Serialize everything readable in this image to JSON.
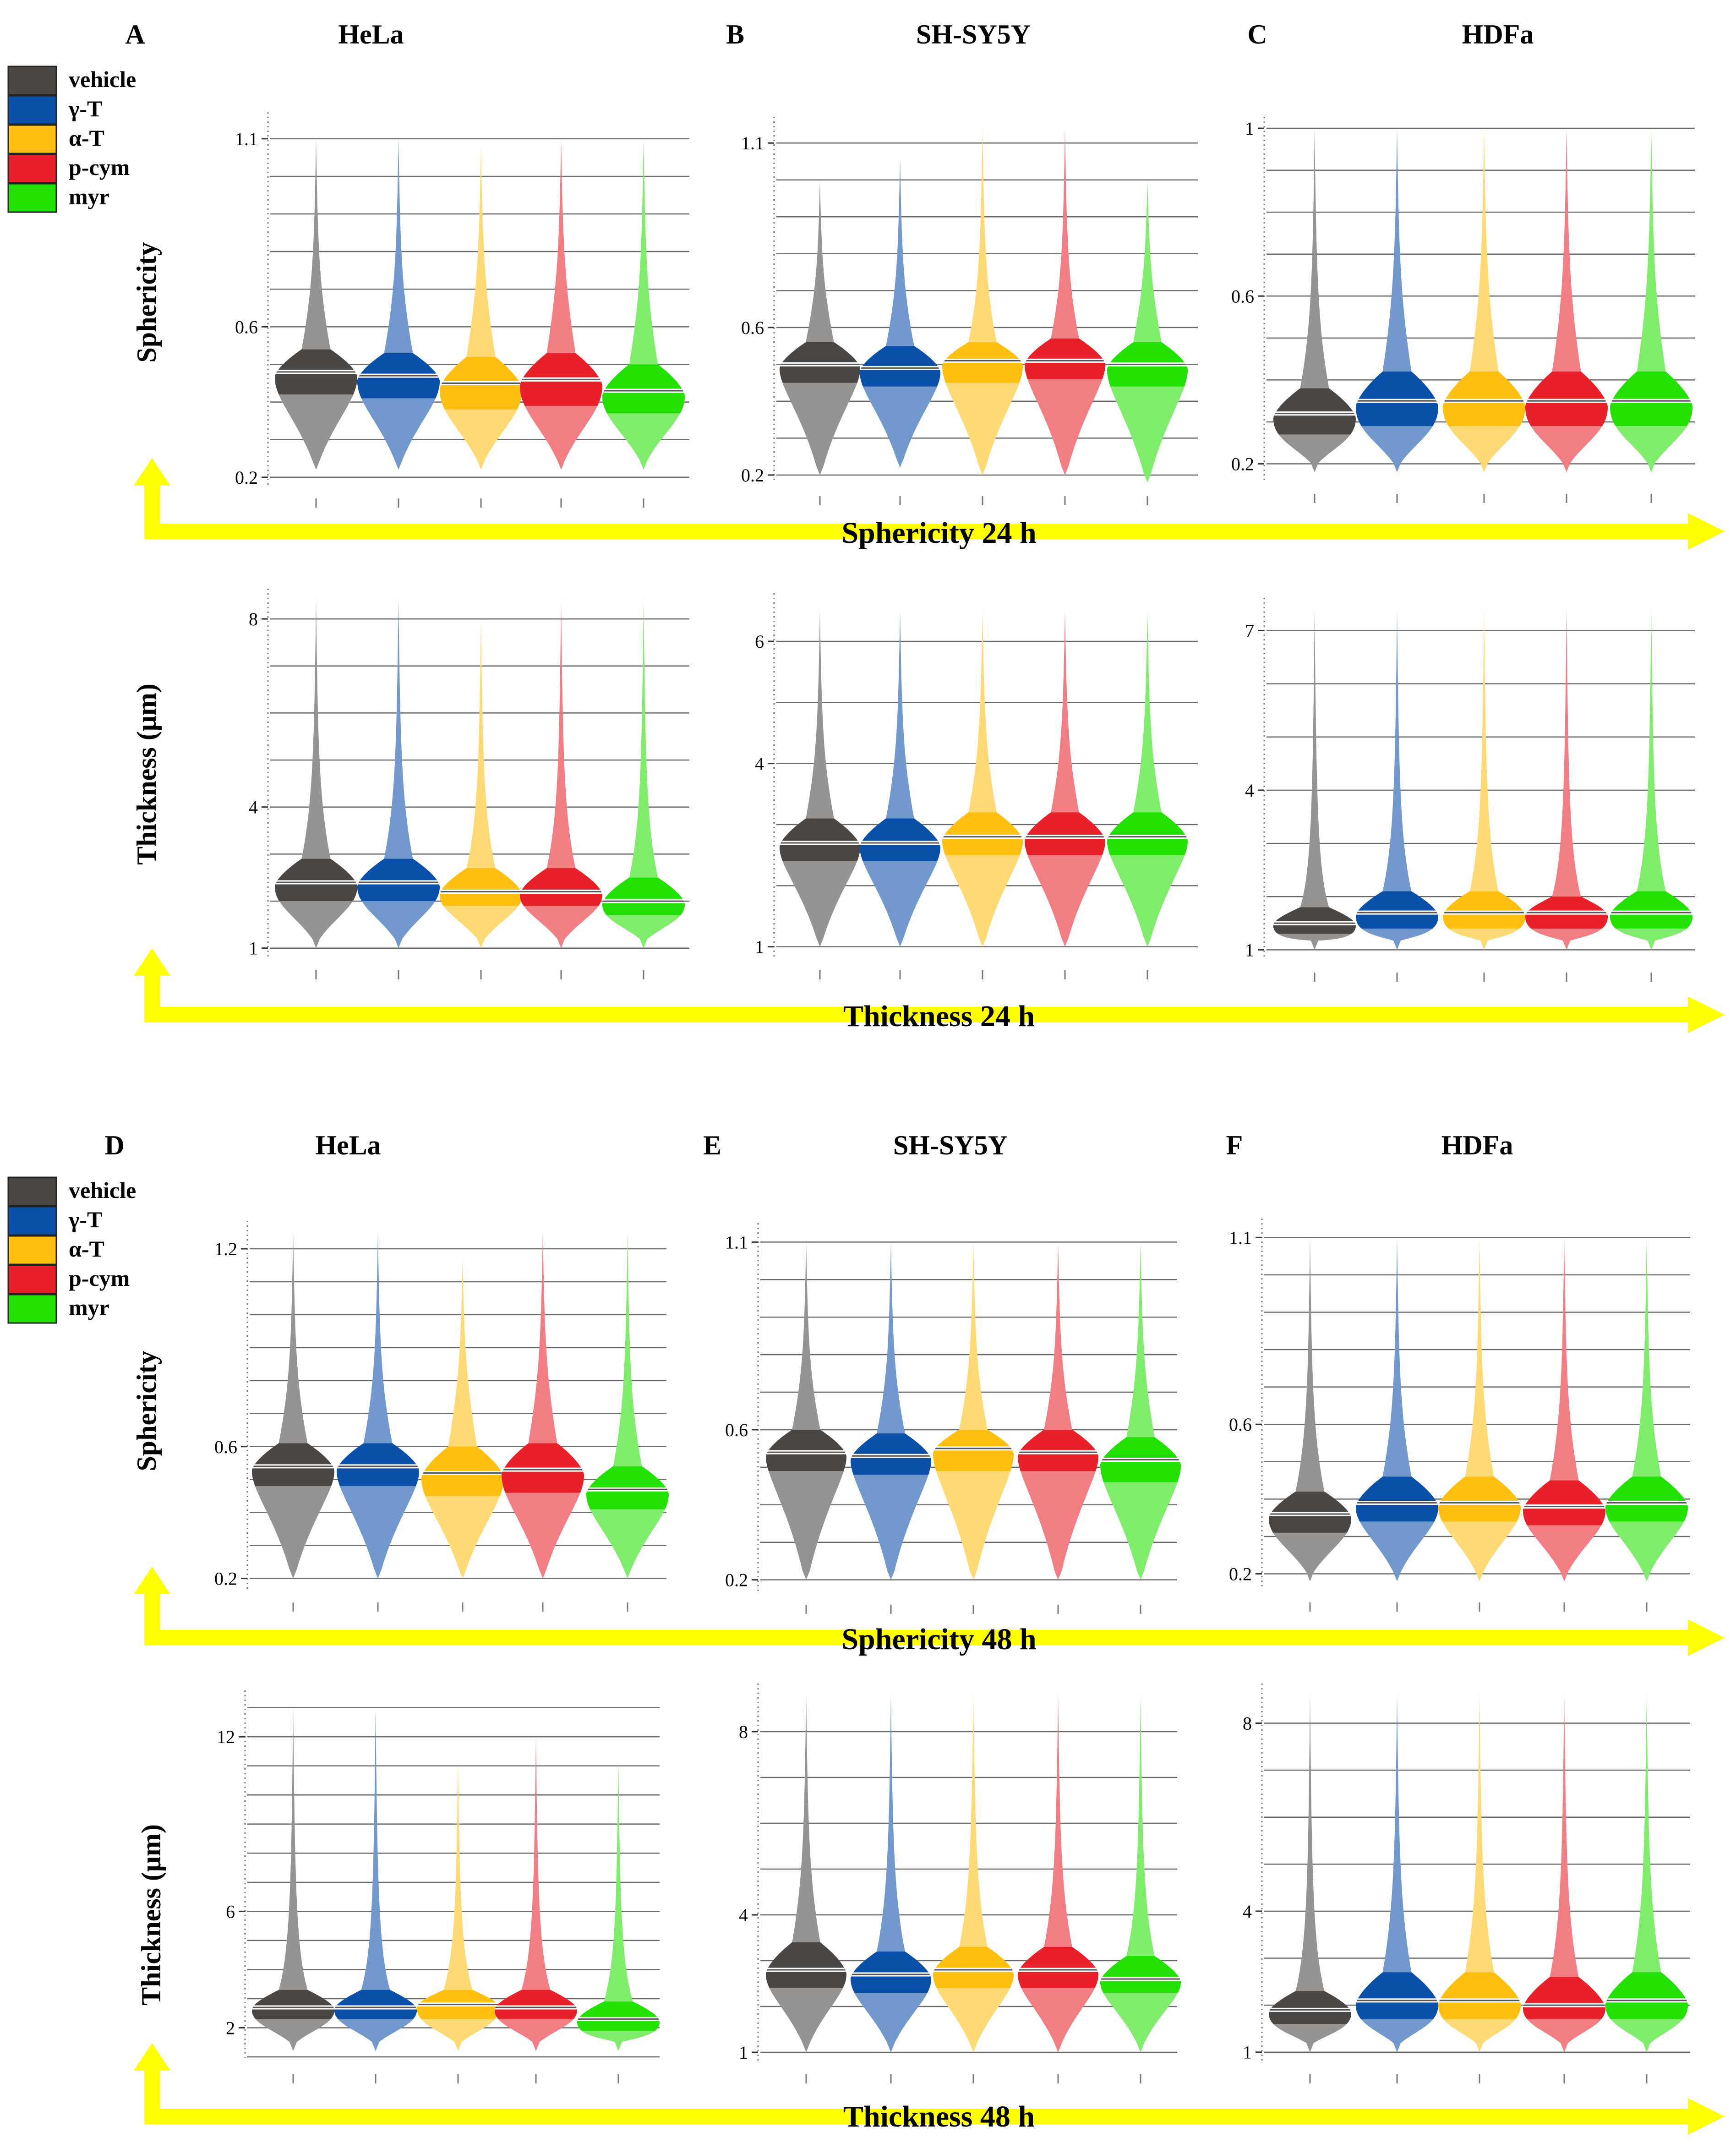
{
  "figure": {
    "legend": [
      {
        "label": "vehicle",
        "color": "#4a4644"
      },
      {
        "label": "γ-T",
        "color": "#0a4fa8"
      },
      {
        "label": "α-T",
        "color": "#ffbf10"
      },
      {
        "label": "p-cym",
        "color": "#e8202a"
      },
      {
        "label": "myr",
        "color": "#22e000"
      }
    ],
    "arrow_labels": [
      "Sphericity 24 h",
      "Thickness 24 h",
      "Sphericity 48 h",
      "Thickness 48 h"
    ],
    "ylabels": [
      "Sphericity",
      "Thickness (μm)",
      "Sphericity",
      "Thickness (μm)"
    ],
    "panel_letters": [
      "A",
      "B",
      "C",
      "D",
      "E",
      "F"
    ],
    "cell_lines": [
      "HeLa",
      "SH-SY5Y",
      "HDFa",
      "HeLa",
      "SH-SY5Y",
      "HDFa"
    ]
  },
  "chart_data": [
    {
      "type": "violin",
      "panel": "A",
      "title": "HeLa",
      "metric": "Sphericity",
      "time": "24 h",
      "ylim": [
        0.19,
        1.14
      ],
      "yticks": [
        0.2,
        0.6,
        1.1
      ],
      "categories": [
        "vehicle",
        "γ-T",
        "α-T",
        "p-cym",
        "myr"
      ],
      "series": [
        {
          "name": "vehicle",
          "min": 0.22,
          "max": 1.1,
          "q1": 0.42,
          "median": 0.48,
          "q3": 0.54
        },
        {
          "name": "γ-T",
          "min": 0.22,
          "max": 1.1,
          "q1": 0.41,
          "median": 0.47,
          "q3": 0.53
        },
        {
          "name": "α-T",
          "min": 0.22,
          "max": 1.08,
          "q1": 0.38,
          "median": 0.45,
          "q3": 0.52
        },
        {
          "name": "p-cym",
          "min": 0.22,
          "max": 1.1,
          "q1": 0.39,
          "median": 0.46,
          "q3": 0.53
        },
        {
          "name": "myr",
          "min": 0.22,
          "max": 1.1,
          "q1": 0.37,
          "median": 0.43,
          "q3": 0.5
        }
      ]
    },
    {
      "type": "violin",
      "panel": "B",
      "title": "SH-SY5Y",
      "metric": "Sphericity",
      "time": "24 h",
      "ylim": [
        0.19,
        1.14
      ],
      "yticks": [
        0.2,
        0.6,
        1.1
      ],
      "categories": [
        "vehicle",
        "γ-T",
        "α-T",
        "p-cym",
        "myr"
      ],
      "series": [
        {
          "name": "vehicle",
          "min": 0.2,
          "max": 1.0,
          "q1": 0.45,
          "median": 0.5,
          "q3": 0.56
        },
        {
          "name": "γ-T",
          "min": 0.22,
          "max": 1.06,
          "q1": 0.44,
          "median": 0.49,
          "q3": 0.55
        },
        {
          "name": "α-T",
          "min": 0.2,
          "max": 1.14,
          "q1": 0.45,
          "median": 0.51,
          "q3": 0.56
        },
        {
          "name": "p-cym",
          "min": 0.2,
          "max": 1.14,
          "q1": 0.46,
          "median": 0.51,
          "q3": 0.57
        },
        {
          "name": "myr",
          "min": 0.18,
          "max": 1.0,
          "q1": 0.44,
          "median": 0.5,
          "q3": 0.56
        }
      ]
    },
    {
      "type": "violin",
      "panel": "C",
      "title": "HDFa",
      "metric": "Sphericity",
      "time": "24 h",
      "ylim": [
        0.17,
        1.0
      ],
      "yticks": [
        0.2,
        0.6,
        1
      ],
      "categories": [
        "vehicle",
        "γ-T",
        "α-T",
        "p-cym",
        "myr"
      ],
      "series": [
        {
          "name": "vehicle",
          "min": 0.18,
          "max": 1.0,
          "q1": 0.27,
          "median": 0.32,
          "q3": 0.38
        },
        {
          "name": "γ-T",
          "min": 0.18,
          "max": 1.0,
          "q1": 0.29,
          "median": 0.35,
          "q3": 0.42
        },
        {
          "name": "α-T",
          "min": 0.18,
          "max": 1.0,
          "q1": 0.29,
          "median": 0.35,
          "q3": 0.42
        },
        {
          "name": "p-cym",
          "min": 0.18,
          "max": 1.0,
          "q1": 0.29,
          "median": 0.35,
          "q3": 0.42
        },
        {
          "name": "myr",
          "min": 0.18,
          "max": 1.0,
          "q1": 0.29,
          "median": 0.35,
          "q3": 0.42
        }
      ]
    },
    {
      "type": "violin",
      "panel": "A",
      "title": "HeLa",
      "metric": "Thickness (μm)",
      "time": "24 h",
      "ylim": [
        0.9,
        8.4
      ],
      "yticks": [
        1,
        4,
        8
      ],
      "categories": [
        "vehicle",
        "γ-T",
        "α-T",
        "p-cym",
        "myr"
      ],
      "series": [
        {
          "name": "vehicle",
          "min": 1.0,
          "max": 8.4,
          "q1": 2.0,
          "median": 2.4,
          "q3": 2.9
        },
        {
          "name": "γ-T",
          "min": 1.0,
          "max": 8.4,
          "q1": 2.0,
          "median": 2.4,
          "q3": 2.9
        },
        {
          "name": "α-T",
          "min": 1.0,
          "max": 8.0,
          "q1": 1.9,
          "median": 2.2,
          "q3": 2.7
        },
        {
          "name": "p-cym",
          "min": 1.0,
          "max": 8.4,
          "q1": 1.9,
          "median": 2.2,
          "q3": 2.7
        },
        {
          "name": "myr",
          "min": 1.0,
          "max": 8.4,
          "q1": 1.7,
          "median": 2.0,
          "q3": 2.5
        }
      ]
    },
    {
      "type": "violin",
      "panel": "B",
      "title": "SH-SY5Y",
      "metric": "Thickness (μm)",
      "time": "24 h",
      "ylim": [
        0.9,
        6.6
      ],
      "yticks": [
        1,
        4,
        6
      ],
      "categories": [
        "vehicle",
        "γ-T",
        "α-T",
        "p-cym",
        "myr"
      ],
      "series": [
        {
          "name": "vehicle",
          "min": 1.0,
          "max": 6.5,
          "q1": 2.4,
          "median": 2.7,
          "q3": 3.1
        },
        {
          "name": "γ-T",
          "min": 1.0,
          "max": 6.5,
          "q1": 2.4,
          "median": 2.7,
          "q3": 3.1
        },
        {
          "name": "α-T",
          "min": 1.0,
          "max": 6.5,
          "q1": 2.5,
          "median": 2.8,
          "q3": 3.2
        },
        {
          "name": "p-cym",
          "min": 1.0,
          "max": 6.5,
          "q1": 2.5,
          "median": 2.8,
          "q3": 3.2
        },
        {
          "name": "myr",
          "min": 1.0,
          "max": 6.5,
          "q1": 2.5,
          "median": 2.8,
          "q3": 3.2
        }
      ]
    },
    {
      "type": "violin",
      "panel": "C",
      "title": "HDFa",
      "metric": "Thickness (μm)",
      "time": "24 h",
      "ylim": [
        0.9,
        7.4
      ],
      "yticks": [
        1,
        4,
        7
      ],
      "categories": [
        "vehicle",
        "γ-T",
        "α-T",
        "p-cym",
        "myr"
      ],
      "series": [
        {
          "name": "vehicle",
          "min": 1.0,
          "max": 7.4,
          "q1": 1.3,
          "median": 1.5,
          "q3": 1.8
        },
        {
          "name": "γ-T",
          "min": 1.0,
          "max": 7.4,
          "q1": 1.4,
          "median": 1.7,
          "q3": 2.1
        },
        {
          "name": "α-T",
          "min": 1.0,
          "max": 7.4,
          "q1": 1.4,
          "median": 1.7,
          "q3": 2.1
        },
        {
          "name": "p-cym",
          "min": 1.0,
          "max": 7.4,
          "q1": 1.4,
          "median": 1.7,
          "q3": 2.0
        },
        {
          "name": "myr",
          "min": 1.0,
          "max": 7.4,
          "q1": 1.4,
          "median": 1.7,
          "q3": 2.1
        }
      ]
    },
    {
      "type": "violin",
      "panel": "D",
      "title": "HeLa",
      "metric": "Sphericity",
      "time": "48 h",
      "ylim": [
        0.18,
        1.25
      ],
      "yticks": [
        0.2,
        0.6,
        1.2
      ],
      "categories": [
        "vehicle",
        "γ-T",
        "α-T",
        "p-cym",
        "myr"
      ],
      "series": [
        {
          "name": "vehicle",
          "min": 0.2,
          "max": 1.25,
          "q1": 0.48,
          "median": 0.54,
          "q3": 0.61
        },
        {
          "name": "γ-T",
          "min": 0.2,
          "max": 1.25,
          "q1": 0.48,
          "median": 0.54,
          "q3": 0.61
        },
        {
          "name": "α-T",
          "min": 0.2,
          "max": 1.17,
          "q1": 0.45,
          "median": 0.52,
          "q3": 0.6
        },
        {
          "name": "p-cym",
          "min": 0.2,
          "max": 1.25,
          "q1": 0.46,
          "median": 0.53,
          "q3": 0.61
        },
        {
          "name": "myr",
          "min": 0.2,
          "max": 1.25,
          "q1": 0.41,
          "median": 0.47,
          "q3": 0.54
        }
      ]
    },
    {
      "type": "violin",
      "panel": "E",
      "title": "SH-SY5Y",
      "metric": "Sphericity",
      "time": "48 h",
      "ylim": [
        0.18,
        1.12
      ],
      "yticks": [
        0.2,
        0.6,
        1.1
      ],
      "categories": [
        "vehicle",
        "γ-T",
        "α-T",
        "p-cym",
        "myr"
      ],
      "series": [
        {
          "name": "vehicle",
          "min": 0.2,
          "max": 1.1,
          "q1": 0.49,
          "median": 0.54,
          "q3": 0.6
        },
        {
          "name": "γ-T",
          "min": 0.2,
          "max": 1.1,
          "q1": 0.48,
          "median": 0.53,
          "q3": 0.59
        },
        {
          "name": "α-T",
          "min": 0.2,
          "max": 1.1,
          "q1": 0.49,
          "median": 0.55,
          "q3": 0.6
        },
        {
          "name": "p-cym",
          "min": 0.2,
          "max": 1.1,
          "q1": 0.49,
          "median": 0.54,
          "q3": 0.6
        },
        {
          "name": "myr",
          "min": 0.2,
          "max": 1.1,
          "q1": 0.46,
          "median": 0.52,
          "q3": 0.58
        }
      ]
    },
    {
      "type": "violin",
      "panel": "F",
      "title": "HDFa",
      "metric": "Sphericity",
      "time": "48 h",
      "ylim": [
        0.17,
        1.12
      ],
      "yticks": [
        0.2,
        0.6,
        1.1
      ],
      "categories": [
        "vehicle",
        "γ-T",
        "α-T",
        "p-cym",
        "myr"
      ],
      "series": [
        {
          "name": "vehicle",
          "min": 0.18,
          "max": 1.1,
          "q1": 0.31,
          "median": 0.36,
          "q3": 0.42
        },
        {
          "name": "γ-T",
          "min": 0.18,
          "max": 1.1,
          "q1": 0.34,
          "median": 0.39,
          "q3": 0.46
        },
        {
          "name": "α-T",
          "min": 0.18,
          "max": 1.1,
          "q1": 0.34,
          "median": 0.39,
          "q3": 0.46
        },
        {
          "name": "p-cym",
          "min": 0.18,
          "max": 1.1,
          "q1": 0.33,
          "median": 0.38,
          "q3": 0.45
        },
        {
          "name": "myr",
          "min": 0.18,
          "max": 1.1,
          "q1": 0.34,
          "median": 0.39,
          "q3": 0.46
        }
      ]
    },
    {
      "type": "violin",
      "panel": "D",
      "title": "HeLa",
      "metric": "Thickness (μm)",
      "time": "48 h",
      "ylim": [
        1.0,
        13.2
      ],
      "yticks": [
        2,
        6,
        12
      ],
      "categories": [
        "vehicle",
        "γ-T",
        "α-T",
        "p-cym",
        "myr"
      ],
      "series": [
        {
          "name": "vehicle",
          "min": 1.2,
          "max": 13.0,
          "q1": 2.3,
          "median": 2.7,
          "q3": 3.3
        },
        {
          "name": "γ-T",
          "min": 1.2,
          "max": 13.0,
          "q1": 2.3,
          "median": 2.7,
          "q3": 3.3
        },
        {
          "name": "α-T",
          "min": 1.2,
          "max": 11.2,
          "q1": 2.3,
          "median": 2.8,
          "q3": 3.3
        },
        {
          "name": "p-cym",
          "min": 1.2,
          "max": 12.0,
          "q1": 2.3,
          "median": 2.7,
          "q3": 3.3
        },
        {
          "name": "myr",
          "min": 1.2,
          "max": 11.2,
          "q1": 1.9,
          "median": 2.3,
          "q3": 2.9
        }
      ]
    },
    {
      "type": "violin",
      "panel": "E",
      "title": "SH-SY5Y",
      "metric": "Thickness (μm)",
      "time": "48 h",
      "ylim": [
        0.9,
        8.8
      ],
      "yticks": [
        1,
        4,
        8
      ],
      "categories": [
        "vehicle",
        "γ-T",
        "α-T",
        "p-cym",
        "myr"
      ],
      "series": [
        {
          "name": "vehicle",
          "min": 1.0,
          "max": 8.8,
          "q1": 2.4,
          "median": 2.8,
          "q3": 3.4
        },
        {
          "name": "γ-T",
          "min": 1.0,
          "max": 8.8,
          "q1": 2.3,
          "median": 2.7,
          "q3": 3.2
        },
        {
          "name": "α-T",
          "min": 1.0,
          "max": 8.8,
          "q1": 2.4,
          "median": 2.8,
          "q3": 3.3
        },
        {
          "name": "p-cym",
          "min": 1.0,
          "max": 8.8,
          "q1": 2.4,
          "median": 2.8,
          "q3": 3.3
        },
        {
          "name": "myr",
          "min": 1.0,
          "max": 8.8,
          "q1": 2.3,
          "median": 2.6,
          "q3": 3.1
        }
      ]
    },
    {
      "type": "violin",
      "panel": "F",
      "title": "HDFa",
      "metric": "Thickness (μm)",
      "time": "48 h",
      "ylim": [
        0.9,
        8.6
      ],
      "yticks": [
        1,
        4,
        8
      ],
      "categories": [
        "vehicle",
        "γ-T",
        "α-T",
        "p-cym",
        "myr"
      ],
      "series": [
        {
          "name": "vehicle",
          "min": 1.0,
          "max": 8.6,
          "q1": 1.6,
          "median": 1.9,
          "q3": 2.3
        },
        {
          "name": "γ-T",
          "min": 1.0,
          "max": 8.6,
          "q1": 1.7,
          "median": 2.1,
          "q3": 2.7
        },
        {
          "name": "α-T",
          "min": 1.0,
          "max": 8.6,
          "q1": 1.7,
          "median": 2.1,
          "q3": 2.7
        },
        {
          "name": "p-cym",
          "min": 1.0,
          "max": 8.6,
          "q1": 1.7,
          "median": 2.0,
          "q3": 2.6
        },
        {
          "name": "myr",
          "min": 1.0,
          "max": 8.6,
          "q1": 1.7,
          "median": 2.1,
          "q3": 2.7
        }
      ]
    }
  ]
}
